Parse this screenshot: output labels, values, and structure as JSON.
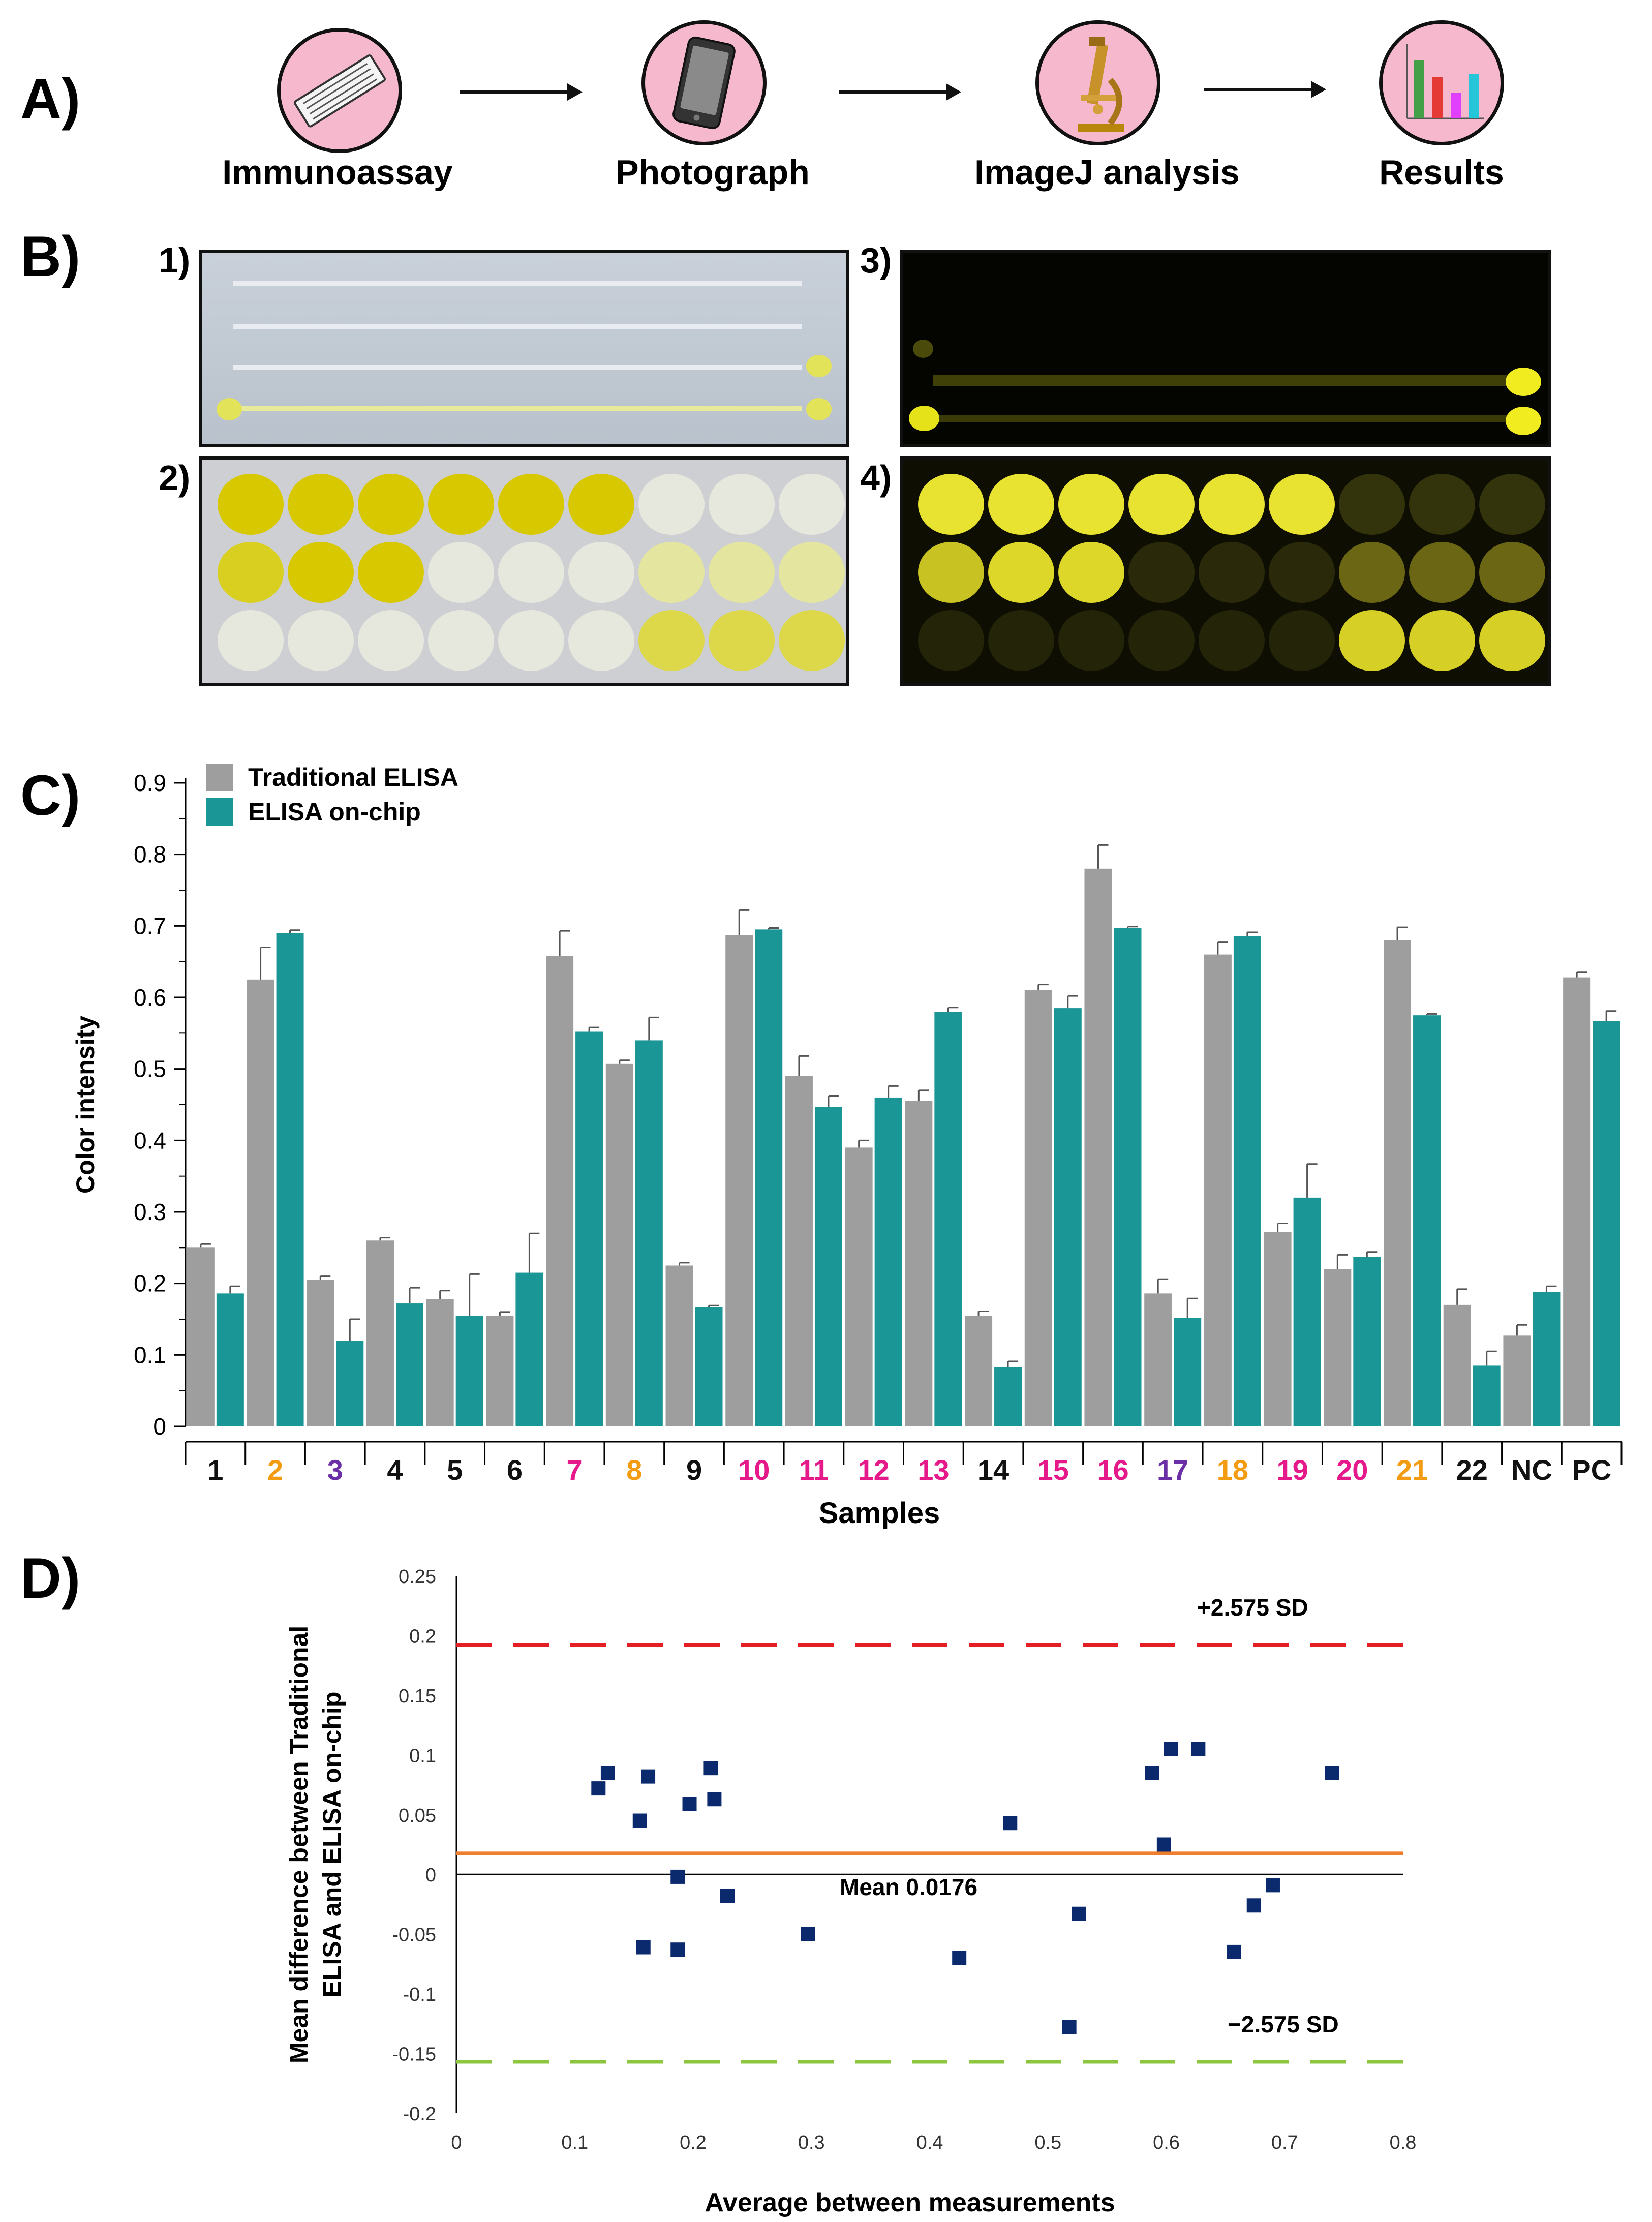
{
  "panels": {
    "a": "A)",
    "b": "B)",
    "c": "C)",
    "d": "D)"
  },
  "steps": [
    {
      "label": "Immunoassay",
      "icon": "microfluidic-chip-icon"
    },
    {
      "label": "Photograph",
      "icon": "smartphone-icon"
    },
    {
      "label": "ImageJ analysis",
      "icon": "microscope-icon"
    },
    {
      "label": "Results",
      "icon": "bar-chart-icon"
    }
  ],
  "photos": {
    "p1": "1)",
    "p2": "2)",
    "p3": "3)",
    "p4": "4)"
  },
  "colors": {
    "grey": "#9e9e9e",
    "teal": "#1a9696",
    "orange": "#f39c12",
    "magenta": "#e5198a",
    "purple": "#6b2fa6",
    "black": "#111111",
    "red": "#e31e24",
    "mean": "#ef7d2e",
    "green": "#8cc63f",
    "navy": "#0b2a6e",
    "pink": "#f6b8cc"
  },
  "chart_data": [
    {
      "type": "bar",
      "title": "",
      "xlabel": "Samples",
      "ylabel": "Color intensity",
      "ylim": [
        0,
        0.9
      ],
      "yticks": [
        "0",
        "0.1",
        "0.2",
        "0.3",
        "0.4",
        "0.5",
        "0.6",
        "0.7",
        "0.8",
        "0.9"
      ],
      "legend_position": "top-left",
      "categories": [
        "1",
        "2",
        "3",
        "4",
        "5",
        "6",
        "7",
        "8",
        "9",
        "10",
        "11",
        "12",
        "13",
        "14",
        "15",
        "16",
        "17",
        "18",
        "19",
        "20",
        "21",
        "22",
        "NC",
        "PC"
      ],
      "category_colors": [
        "black",
        "orange",
        "purple",
        "black",
        "black",
        "black",
        "magenta",
        "orange",
        "black",
        "magenta",
        "magenta",
        "magenta",
        "magenta",
        "black",
        "magenta",
        "magenta",
        "purple",
        "orange",
        "magenta",
        "magenta",
        "orange",
        "black",
        "black",
        "black"
      ],
      "series": [
        {
          "name": "Traditional ELISA",
          "color": "grey",
          "values": [
            0.25,
            0.625,
            0.205,
            0.26,
            0.178,
            0.155,
            0.658,
            0.507,
            0.225,
            0.687,
            0.49,
            0.39,
            0.455,
            0.155,
            0.61,
            0.78,
            0.186,
            0.66,
            0.272,
            0.22,
            0.68,
            0.17,
            0.127,
            0.628
          ],
          "errors": [
            0.005,
            0.045,
            0.005,
            0.004,
            0.012,
            0.005,
            0.035,
            0.005,
            0.004,
            0.035,
            0.028,
            0.01,
            0.015,
            0.006,
            0.008,
            0.033,
            0.02,
            0.017,
            0.012,
            0.02,
            0.018,
            0.022,
            0.015,
            0.007
          ]
        },
        {
          "name": "ELISA on-chip",
          "color": "teal",
          "values": [
            0.186,
            0.69,
            0.12,
            0.172,
            0.155,
            0.215,
            0.552,
            0.54,
            0.167,
            0.695,
            0.447,
            0.46,
            0.58,
            0.083,
            0.585,
            0.697,
            0.152,
            0.686,
            0.32,
            0.237,
            0.575,
            0.085,
            0.188,
            0.567
          ],
          "errors": [
            0.01,
            0.004,
            0.03,
            0.022,
            0.058,
            0.055,
            0.006,
            0.032,
            0.002,
            0.002,
            0.015,
            0.016,
            0.006,
            0.008,
            0.017,
            0.002,
            0.027,
            0.005,
            0.047,
            0.007,
            0.002,
            0.02,
            0.008,
            0.014
          ]
        }
      ]
    },
    {
      "type": "scatter",
      "title": "",
      "xlabel": "Average between measurements",
      "ylabel_line1": "Mean difference between Traditional",
      "ylabel_line2": "ELISA and ELISA on-chip",
      "xlim": [
        0,
        0.8
      ],
      "ylim": [
        -0.2,
        0.25
      ],
      "xticks": [
        "0",
        "0.1",
        "0.2",
        "0.3",
        "0.4",
        "0.5",
        "0.6",
        "0.7",
        "0.8"
      ],
      "yticks": [
        "-0.2",
        "-0.15",
        "-0.1",
        "-0.05",
        "0",
        "0.05",
        "0.1",
        "0.15",
        "0.2",
        "0.25"
      ],
      "upper_limit": {
        "value": 0.192,
        "label": "+2.575 SD"
      },
      "mean_line": {
        "value": 0.0176,
        "label": "Mean 0.0176"
      },
      "lower_limit": {
        "value": -0.157,
        "label": "−2.575 SD"
      },
      "points": [
        {
          "x": 0.12,
          "y": 0.072
        },
        {
          "x": 0.128,
          "y": 0.085
        },
        {
          "x": 0.155,
          "y": 0.045
        },
        {
          "x": 0.162,
          "y": 0.082
        },
        {
          "x": 0.158,
          "y": -0.061
        },
        {
          "x": 0.187,
          "y": -0.002
        },
        {
          "x": 0.197,
          "y": 0.059
        },
        {
          "x": 0.187,
          "y": -0.063
        },
        {
          "x": 0.215,
          "y": 0.089
        },
        {
          "x": 0.218,
          "y": 0.063
        },
        {
          "x": 0.229,
          "y": -0.018
        },
        {
          "x": 0.297,
          "y": -0.05
        },
        {
          "x": 0.425,
          "y": -0.07
        },
        {
          "x": 0.468,
          "y": 0.043
        },
        {
          "x": 0.518,
          "y": -0.128
        },
        {
          "x": 0.526,
          "y": -0.033
        },
        {
          "x": 0.588,
          "y": 0.085
        },
        {
          "x": 0.598,
          "y": 0.025
        },
        {
          "x": 0.604,
          "y": 0.105
        },
        {
          "x": 0.627,
          "y": 0.105
        },
        {
          "x": 0.657,
          "y": -0.065
        },
        {
          "x": 0.674,
          "y": -0.026
        },
        {
          "x": 0.69,
          "y": -0.009
        },
        {
          "x": 0.74,
          "y": 0.085
        }
      ]
    }
  ]
}
